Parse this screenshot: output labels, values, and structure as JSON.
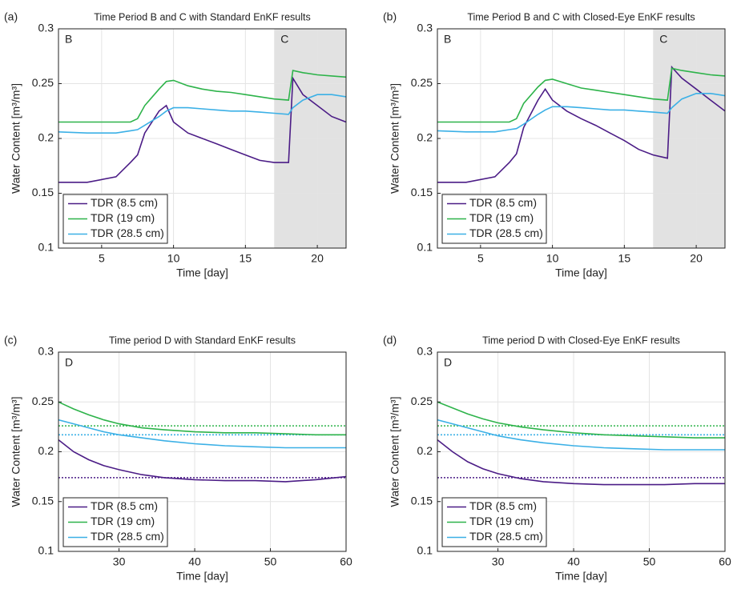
{
  "chart_data": [
    {
      "type": "line",
      "panel_label": "(a)",
      "title": "Time Period B and C with Standard EnKF results",
      "annotation": "B",
      "xlabel": "Time [day]",
      "ylabel": "Water Content [m³/m³]",
      "grid": true,
      "legend": "lower left",
      "xlim": [
        2,
        22
      ],
      "xticks": [
        5,
        10,
        15,
        20
      ],
      "ylim": [
        0.1,
        0.3
      ],
      "yticks": [
        0.1,
        0.15,
        0.2,
        0.25,
        0.3
      ],
      "shaded_region": {
        "x": [
          17,
          22
        ],
        "label": "C",
        "color": "#e2e2e2"
      },
      "x": [
        2,
        4,
        6,
        7,
        7.5,
        8,
        9,
        9.5,
        10,
        11,
        12,
        13,
        14,
        15,
        16,
        17,
        18,
        18.3,
        19,
        20,
        21,
        22
      ],
      "series": [
        {
          "name": "TDR (8.5 cm)",
          "color": "#4b1c86",
          "values": [
            0.16,
            0.16,
            0.165,
            0.178,
            0.185,
            0.205,
            0.225,
            0.23,
            0.215,
            0.205,
            0.2,
            0.195,
            0.19,
            0.185,
            0.18,
            0.178,
            0.178,
            0.255,
            0.24,
            0.23,
            0.22,
            0.215
          ]
        },
        {
          "name": "TDR (19 cm)",
          "color": "#2db34a",
          "values": [
            0.215,
            0.215,
            0.215,
            0.215,
            0.218,
            0.23,
            0.245,
            0.252,
            0.253,
            0.248,
            0.245,
            0.243,
            0.242,
            0.24,
            0.238,
            0.236,
            0.235,
            0.262,
            0.26,
            0.258,
            0.257,
            0.256
          ]
        },
        {
          "name": "TDR (28.5 cm)",
          "color": "#3bb0e6",
          "values": [
            0.206,
            0.205,
            0.205,
            0.207,
            0.208,
            0.212,
            0.22,
            0.225,
            0.228,
            0.228,
            0.227,
            0.226,
            0.225,
            0.225,
            0.224,
            0.223,
            0.222,
            0.228,
            0.235,
            0.24,
            0.24,
            0.238
          ]
        }
      ]
    },
    {
      "type": "line",
      "panel_label": "(b)",
      "title": "Time Period B and C with Closed-Eye EnKF results",
      "annotation": "B",
      "xlabel": "Time [day]",
      "ylabel": "Water Content [m³/m³]",
      "grid": true,
      "legend": "lower left",
      "xlim": [
        2,
        22
      ],
      "xticks": [
        5,
        10,
        15,
        20
      ],
      "ylim": [
        0.1,
        0.3
      ],
      "yticks": [
        0.1,
        0.15,
        0.2,
        0.25,
        0.3
      ],
      "shaded_region": {
        "x": [
          17,
          22
        ],
        "label": "C",
        "color": "#e2e2e2"
      },
      "x": [
        2,
        4,
        6,
        7,
        7.5,
        8,
        9,
        9.5,
        10,
        11,
        12,
        13,
        14,
        15,
        16,
        17,
        18,
        18.3,
        19,
        20,
        21,
        22
      ],
      "series": [
        {
          "name": "TDR (8.5 cm)",
          "color": "#4b1c86",
          "values": [
            0.16,
            0.16,
            0.165,
            0.178,
            0.186,
            0.21,
            0.235,
            0.245,
            0.235,
            0.225,
            0.218,
            0.212,
            0.205,
            0.198,
            0.19,
            0.185,
            0.182,
            0.265,
            0.255,
            0.245,
            0.235,
            0.225
          ]
        },
        {
          "name": "TDR (19 cm)",
          "color": "#2db34a",
          "values": [
            0.215,
            0.215,
            0.215,
            0.215,
            0.218,
            0.232,
            0.247,
            0.253,
            0.254,
            0.25,
            0.246,
            0.244,
            0.242,
            0.24,
            0.238,
            0.236,
            0.235,
            0.264,
            0.262,
            0.26,
            0.258,
            0.257
          ]
        },
        {
          "name": "TDR (28.5 cm)",
          "color": "#3bb0e6",
          "values": [
            0.207,
            0.206,
            0.206,
            0.208,
            0.209,
            0.213,
            0.222,
            0.226,
            0.229,
            0.229,
            0.228,
            0.227,
            0.226,
            0.226,
            0.225,
            0.224,
            0.223,
            0.228,
            0.236,
            0.241,
            0.241,
            0.239
          ]
        }
      ]
    },
    {
      "type": "line",
      "panel_label": "(c)",
      "title": "Time period D with Standard EnKF results",
      "annotation": "D",
      "xlabel": "Time [day]",
      "ylabel": "Water Content [m³/m³]",
      "grid": true,
      "legend": "lower left",
      "xlim": [
        22,
        60
      ],
      "xticks": [
        30,
        40,
        50,
        60
      ],
      "ylim": [
        0.1,
        0.3
      ],
      "yticks": [
        0.1,
        0.15,
        0.2,
        0.25,
        0.3
      ],
      "reference_lines": [
        {
          "value": 0.174,
          "color": "#4b1c86"
        },
        {
          "value": 0.226,
          "color": "#2db34a"
        },
        {
          "value": 0.217,
          "color": "#3bb0e6"
        }
      ],
      "x": [
        22,
        24,
        26,
        28,
        30,
        33,
        36,
        40,
        44,
        48,
        52,
        56,
        60
      ],
      "series": [
        {
          "name": "TDR (8.5 cm)",
          "color": "#4b1c86",
          "values": [
            0.212,
            0.2,
            0.192,
            0.186,
            0.182,
            0.177,
            0.174,
            0.172,
            0.171,
            0.171,
            0.17,
            0.172,
            0.175
          ]
        },
        {
          "name": "TDR (19 cm)",
          "color": "#2db34a",
          "values": [
            0.25,
            0.243,
            0.237,
            0.232,
            0.228,
            0.224,
            0.222,
            0.22,
            0.219,
            0.219,
            0.218,
            0.217,
            0.217
          ]
        },
        {
          "name": "TDR (28.5 cm)",
          "color": "#3bb0e6",
          "values": [
            0.232,
            0.228,
            0.224,
            0.22,
            0.217,
            0.214,
            0.211,
            0.208,
            0.206,
            0.205,
            0.204,
            0.204,
            0.204
          ]
        }
      ]
    },
    {
      "type": "line",
      "panel_label": "(d)",
      "title": "Time period D with Closed-Eye EnKF results",
      "annotation": "D",
      "xlabel": "Time [day]",
      "ylabel": "Water Content [m³/m³]",
      "grid": true,
      "legend": "lower left",
      "xlim": [
        22,
        60
      ],
      "xticks": [
        30,
        40,
        50,
        60
      ],
      "ylim": [
        0.1,
        0.3
      ],
      "yticks": [
        0.1,
        0.15,
        0.2,
        0.25,
        0.3
      ],
      "reference_lines": [
        {
          "value": 0.174,
          "color": "#4b1c86"
        },
        {
          "value": 0.226,
          "color": "#2db34a"
        },
        {
          "value": 0.217,
          "color": "#3bb0e6"
        }
      ],
      "x": [
        22,
        24,
        26,
        28,
        30,
        33,
        36,
        40,
        44,
        48,
        52,
        56,
        60
      ],
      "series": [
        {
          "name": "TDR (8.5 cm)",
          "color": "#4b1c86",
          "values": [
            0.212,
            0.2,
            0.19,
            0.183,
            0.178,
            0.173,
            0.17,
            0.168,
            0.167,
            0.167,
            0.167,
            0.168,
            0.168
          ]
        },
        {
          "name": "TDR (19 cm)",
          "color": "#2db34a",
          "values": [
            0.25,
            0.244,
            0.238,
            0.233,
            0.229,
            0.225,
            0.222,
            0.219,
            0.217,
            0.216,
            0.215,
            0.214,
            0.214
          ]
        },
        {
          "name": "TDR (28.5 cm)",
          "color": "#3bb0e6",
          "values": [
            0.232,
            0.228,
            0.224,
            0.22,
            0.216,
            0.212,
            0.209,
            0.206,
            0.204,
            0.203,
            0.202,
            0.202,
            0.202
          ]
        }
      ]
    }
  ]
}
